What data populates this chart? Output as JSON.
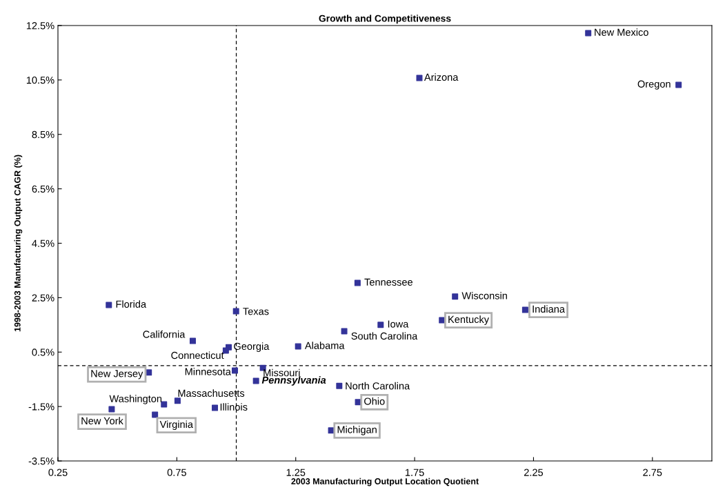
{
  "chart_data": {
    "type": "scatter",
    "title": "Growth and Competitiveness",
    "xlabel": "2003 Manufacturing Output Location Quotient",
    "ylabel": "1998-2003 Manufacturing Output CAGR (%)",
    "x": [
      2.48,
      1.77,
      2.86,
      1.51,
      1.92,
      2.215,
      1.865,
      1.607,
      1.454,
      0.464,
      0.999,
      0.817,
      0.968,
      0.956,
      1.26,
      1.112,
      0.994,
      0.632,
      1.083,
      1.433,
      1.512,
      0.753,
      0.696,
      0.91,
      0.476,
      0.658,
      1.399
    ],
    "series": [
      {
        "color": "#333399",
        "values": [
          12.22,
          10.57,
          10.32,
          3.04,
          2.54,
          2.05,
          1.67,
          1.5,
          1.27,
          2.23,
          2.0,
          0.91,
          0.68,
          0.56,
          0.71,
          -0.08,
          -0.18,
          -0.25,
          -0.56,
          -0.74,
          -1.34,
          -1.29,
          -1.42,
          -1.55,
          -1.6,
          -1.8,
          -2.38
        ]
      }
    ],
    "annotations": [
      {
        "text": "New Mexico",
        "x": 2.48,
        "y": 12.22
      },
      {
        "text": "Arizona",
        "x": 1.77,
        "y": 10.57
      },
      {
        "text": "Oregon",
        "x": 2.86,
        "y": 10.32
      },
      {
        "text": "Tennessee",
        "x": 1.51,
        "y": 3.04
      },
      {
        "text": "Wisconsin",
        "x": 1.92,
        "y": 2.54
      },
      {
        "text": "Indiana",
        "x": 2.215,
        "y": 2.05
      },
      {
        "text": "Kentucky",
        "x": 1.865,
        "y": 1.67
      },
      {
        "text": "Iowa",
        "x": 1.607,
        "y": 1.5
      },
      {
        "text": "South Carolina",
        "x": 1.454,
        "y": 1.27
      },
      {
        "text": "Florida",
        "x": 0.464,
        "y": 2.23
      },
      {
        "text": "Texas",
        "x": 0.999,
        "y": 2.0
      },
      {
        "text": "California",
        "x": 0.817,
        "y": 0.91
      },
      {
        "text": "Georgia",
        "x": 0.968,
        "y": 0.68
      },
      {
        "text": "Connecticut",
        "x": 0.956,
        "y": 0.56
      },
      {
        "text": "Alabama",
        "x": 1.26,
        "y": 0.71
      },
      {
        "text": "Missouri",
        "x": 1.112,
        "y": -0.08
      },
      {
        "text": "Minnesota",
        "x": 0.994,
        "y": -0.18
      },
      {
        "text": "New Jersey",
        "x": 0.632,
        "y": -0.25
      },
      {
        "text": "Pennsylvania",
        "x": 1.083,
        "y": -0.56
      },
      {
        "text": "North Carolina",
        "x": 1.433,
        "y": -0.74
      },
      {
        "text": "Ohio",
        "x": 1.512,
        "y": -1.34
      },
      {
        "text": "Massachusetts",
        "x": 0.753,
        "y": -1.29
      },
      {
        "text": "Washington",
        "x": 0.696,
        "y": -1.42
      },
      {
        "text": "Illinois",
        "x": 0.91,
        "y": -1.55
      },
      {
        "text": "New York",
        "x": 0.476,
        "y": -1.6
      },
      {
        "text": "Virginia",
        "x": 0.658,
        "y": -1.8
      },
      {
        "text": "Michigan",
        "x": 1.399,
        "y": -2.38
      }
    ],
    "ref_lines": [
      {
        "axis": "x",
        "value": 1.0,
        "color": "#000000",
        "line_style": "dashed"
      },
      {
        "axis": "y",
        "value": 0,
        "color": "#000000",
        "line_style": "dashed"
      }
    ],
    "xlim": [
      0.25,
      3.0
    ],
    "ylim": [
      -3.5,
      12.5
    ],
    "xticks": [
      0.25,
      0.75,
      1.25,
      1.75,
      2.25,
      2.75
    ],
    "yticks": [
      {
        "value": -3.5,
        "label": "-3.5%"
      },
      {
        "value": -1.5,
        "label": "-1.5%"
      },
      {
        "value": 0.5,
        "label": "0.5%"
      },
      {
        "value": 2.5,
        "label": "2.5%"
      },
      {
        "value": 4.5,
        "label": "4.5%"
      },
      {
        "value": 6.5,
        "label": "6.5%"
      },
      {
        "value": 8.5,
        "label": "8.5%"
      },
      {
        "value": 10.5,
        "label": "10.5%"
      },
      {
        "value": 12.5,
        "label": "12.5%"
      }
    ],
    "marker": "square",
    "grid": false,
    "legend": false
  }
}
